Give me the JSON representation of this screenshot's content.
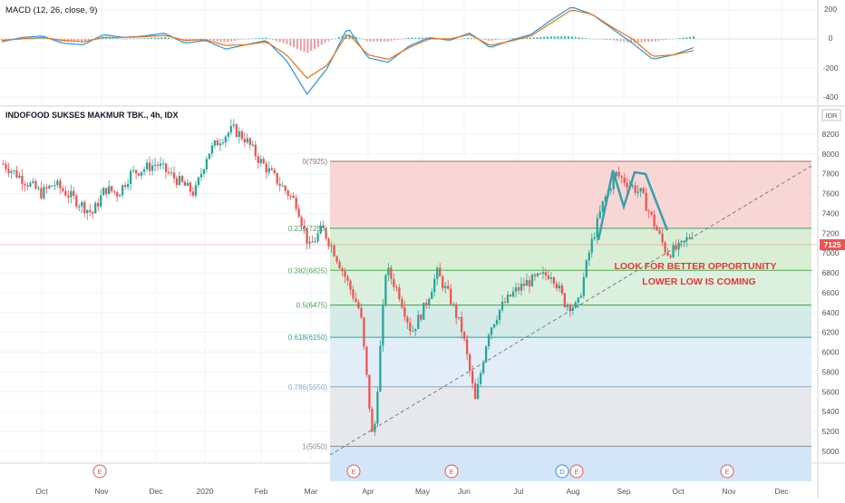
{
  "indicator": {
    "label": "MACD (12, 26, close, 9)",
    "ticks": [
      "200",
      "0",
      "-200",
      "-400"
    ]
  },
  "main": {
    "title": "INDOFOOD SUKSES MAKMUR TBK., 4h, IDX",
    "currency_badge": "IDR",
    "price_ticks": [
      "8200",
      "8000",
      "7800",
      "7600",
      "7400",
      "7200",
      "7000",
      "6800",
      "6600",
      "6400",
      "6200",
      "6000",
      "5800",
      "5600",
      "5400",
      "5200",
      "5000"
    ],
    "last_price": "7125",
    "annotation_line1": "LOOK FOR BETTER OPPORTUNITY",
    "annotation_line2": "LOWER LOW IS COMING"
  },
  "time_axis": {
    "labels": [
      "Oct",
      "Nov",
      "Dec",
      "2020",
      "Feb",
      "Mar",
      "Apr",
      "May",
      "Jun",
      "Jul",
      "Aug",
      "Sep",
      "Oct",
      "Nov",
      "Dec"
    ]
  },
  "event_markers": [
    "E",
    "E",
    "E",
    "D",
    "E",
    "E"
  ],
  "colors": {
    "up": "#26a69a",
    "down": "#ef5350",
    "macd_line": "#2196f3",
    "signal_line": "#ff6d00",
    "annotation": "#e53935",
    "last_price_badge": "#ef5350"
  },
  "chart_data": [
    {
      "type": "line",
      "title": "MACD (12, 26, close, 9)",
      "ylim": [
        -430,
        230
      ],
      "series": [
        {
          "name": "MACD",
          "values": [
            -20,
            10,
            20,
            -30,
            -40,
            30,
            10,
            20,
            40,
            -30,
            -10,
            -70,
            -40,
            -10,
            -150,
            -380,
            -200,
            80,
            -130,
            -160,
            -50,
            10,
            -10,
            40,
            -60,
            -10,
            30,
            130,
            220,
            170,
            70,
            -30,
            -140,
            -110,
            -60
          ]
        },
        {
          "name": "Signal",
          "values": [
            -10,
            0,
            10,
            -10,
            -20,
            10,
            10,
            15,
            25,
            -10,
            -5,
            -45,
            -40,
            -20,
            -110,
            -270,
            -180,
            40,
            -110,
            -140,
            -60,
            0,
            0,
            30,
            -45,
            -15,
            20,
            110,
            200,
            170,
            80,
            0,
            -120,
            -110,
            -80
          ]
        }
      ]
    },
    {
      "type": "line",
      "title": "INDOFOOD SUKSES MAKMUR TBK., 4h, IDX",
      "ylim": [
        4880,
        8300
      ],
      "close": [
        7900,
        7800,
        7700,
        7600,
        7700,
        7600,
        7500,
        7400,
        7650,
        7600,
        7800,
        7850,
        7900,
        7800,
        7700,
        7600,
        8000,
        8150,
        8250,
        8150,
        7950,
        7800,
        7650,
        7500,
        7050,
        7250,
        7000,
        6700,
        6400,
        5050,
        6850,
        6600,
        6200,
        6450,
        6800,
        6550,
        6200,
        5500,
        6200,
        6450,
        6600,
        6700,
        6750,
        6800,
        6500,
        6450,
        7050,
        7500,
        7800,
        7700,
        7600,
        7300,
        7000,
        7050,
        7200
      ],
      "fibonacci": {
        "levels": [
          {
            "label": "0(7925)",
            "value": 7925
          },
          {
            "label": "0.236(7250)",
            "value": 7250
          },
          {
            "label": "0.382(6825)",
            "value": 6825
          },
          {
            "label": "0.5(6475)",
            "value": 6475
          },
          {
            "label": "0.618(6150)",
            "value": 6150
          },
          {
            "label": "0.786(5650)",
            "value": 5650
          },
          {
            "label": "1(5050)",
            "value": 5050
          }
        ]
      }
    }
  ]
}
